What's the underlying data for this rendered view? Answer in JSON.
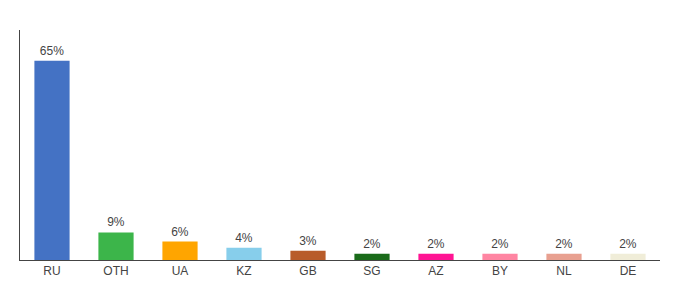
{
  "chart_data": {
    "type": "bar",
    "categories": [
      "RU",
      "OTH",
      "UA",
      "KZ",
      "GB",
      "SG",
      "AZ",
      "BY",
      "NL",
      "DE"
    ],
    "values": [
      65,
      9,
      6,
      4,
      3,
      2,
      2,
      2,
      2,
      2
    ],
    "value_labels": [
      "65%",
      "9%",
      "6%",
      "4%",
      "3%",
      "2%",
      "2%",
      "2%",
      "2%",
      "2%"
    ],
    "colors": [
      "#4472C4",
      "#3CB54A",
      "#FFA500",
      "#87CEEB",
      "#B85C2A",
      "#1A6B1A",
      "#FF1493",
      "#FF85A2",
      "#E8A090",
      "#F0EDD8"
    ],
    "ylim": [
      0,
      75
    ],
    "grid": false,
    "data_labels": true,
    "tick_labels": "x"
  }
}
